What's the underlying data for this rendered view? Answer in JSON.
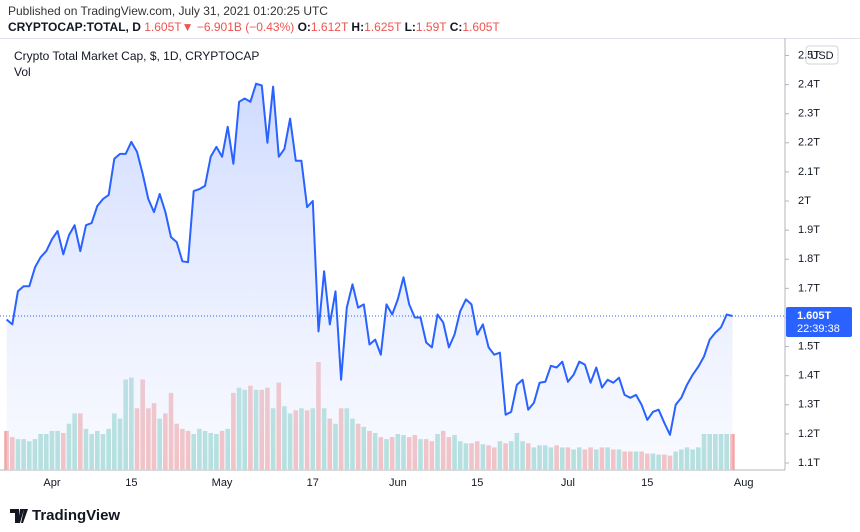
{
  "header": {
    "published": "Published on TradingView.com, July 31, 2021 01:20:25 UTC",
    "symbol": "CRYPTOCAP:TOTAL, D",
    "price": "1.605T",
    "arrow": "▼",
    "change": "−6.901B (−0.43%)",
    "ohlc": [
      {
        "label": "O:",
        "value": "1.612T"
      },
      {
        "label": "H:",
        "value": "1.625T"
      },
      {
        "label": "L:",
        "value": "1.59T"
      },
      {
        "label": "C:",
        "value": "1.605T"
      }
    ]
  },
  "footer": {
    "brand": "TradingView"
  },
  "chart_data": {
    "type": "line",
    "title": "Crypto Total Market Cap, $, 1D, CRYPTOCAP",
    "currency": "USD",
    "last_label": "1.605T",
    "countdown": "22:39:38",
    "categories": [
      null,
      null,
      null,
      null,
      null,
      null,
      null,
      null,
      "Apr",
      null,
      null,
      null,
      null,
      null,
      null,
      null,
      null,
      null,
      null,
      null,
      null,
      null,
      "15",
      null,
      null,
      null,
      null,
      null,
      null,
      null,
      null,
      null,
      null,
      null,
      null,
      null,
      null,
      null,
      "May",
      null,
      null,
      null,
      null,
      null,
      null,
      null,
      null,
      null,
      null,
      null,
      null,
      null,
      null,
      null,
      "17",
      null,
      null,
      null,
      null,
      null,
      null,
      null,
      null,
      null,
      null,
      null,
      null,
      null,
      null,
      "Jun",
      null,
      null,
      null,
      null,
      null,
      null,
      null,
      null,
      null,
      null,
      null,
      null,
      null,
      "15",
      null,
      null,
      null,
      null,
      null,
      null,
      null,
      null,
      null,
      null,
      null,
      null,
      null,
      null,
      null,
      "Jul",
      null,
      null,
      null,
      null,
      null,
      null,
      null,
      null,
      null,
      null,
      null,
      null,
      null,
      "15",
      null,
      null,
      null,
      null,
      null,
      null,
      null,
      null,
      null,
      null,
      null,
      null,
      null,
      null,
      null,
      null,
      "Aug"
    ],
    "series": [
      {
        "name": "Crypto Total Market Cap",
        "color": "#2962ff",
        "fill": "#dde6ff",
        "values": [
          1.593,
          1.576,
          1.69,
          1.707,
          1.707,
          1.772,
          1.807,
          1.828,
          1.869,
          1.897,
          1.817,
          1.883,
          1.917,
          1.828,
          1.917,
          1.924,
          1.983,
          2.007,
          2.021,
          2.145,
          2.162,
          2.162,
          2.203,
          2.169,
          2.093,
          2.007,
          1.962,
          2.024,
          1.962,
          1.876,
          1.859,
          1.793,
          1.79,
          2.034,
          2.041,
          2.052,
          2.152,
          2.186,
          2.152,
          2.255,
          2.128,
          2.341,
          2.352,
          2.341,
          2.403,
          2.397,
          2.2,
          2.393,
          2.152,
          2.179,
          2.283,
          2.138,
          2.138,
          1.979,
          2.0,
          1.552,
          1.759,
          1.576,
          1.69,
          1.386,
          1.634,
          1.714,
          1.634,
          1.645,
          1.507,
          1.524,
          1.472,
          1.645,
          1.61,
          1.662,
          1.738,
          1.645,
          1.6,
          1.6,
          1.514,
          1.497,
          1.61,
          1.583,
          1.497,
          1.541,
          1.621,
          1.662,
          1.645,
          1.541,
          1.576,
          1.497,
          1.472,
          1.479,
          1.266,
          1.276,
          1.369,
          1.386,
          1.283,
          1.307,
          1.376,
          1.379,
          1.434,
          1.428,
          1.448,
          1.379,
          1.403,
          1.448,
          1.438,
          1.376,
          1.428,
          1.359,
          1.386,
          1.376,
          1.393,
          1.334,
          1.324,
          1.334,
          1.3,
          1.248,
          1.276,
          1.283,
          1.238,
          1.197,
          1.3,
          1.324,
          1.369,
          1.403,
          1.431,
          1.466,
          1.524,
          1.548,
          1.566,
          1.61,
          1.605,
          null,
          null
        ]
      },
      {
        "name": "Vol",
        "up_color": "#8fd4c9",
        "down_color": "#f3a3a1",
        "values": [
          38,
          32,
          30,
          30,
          28,
          30,
          35,
          35,
          38,
          38,
          36,
          45,
          55,
          55,
          40,
          35,
          38,
          35,
          40,
          55,
          50,
          88,
          90,
          60,
          88,
          60,
          65,
          50,
          55,
          75,
          45,
          40,
          38,
          35,
          40,
          38,
          36,
          35,
          38,
          40,
          75,
          80,
          78,
          82,
          78,
          78,
          80,
          60,
          85,
          62,
          55,
          58,
          60,
          58,
          60,
          105,
          60,
          50,
          45,
          60,
          60,
          50,
          45,
          42,
          38,
          36,
          32,
          30,
          32,
          35,
          34,
          32,
          34,
          30,
          30,
          28,
          35,
          38,
          32,
          34,
          28,
          26,
          26,
          28,
          25,
          24,
          22,
          28,
          26,
          28,
          36,
          28,
          26,
          22,
          24,
          24,
          22,
          24,
          22,
          22,
          20,
          22,
          20,
          22,
          20,
          22,
          22,
          20,
          20,
          18,
          18,
          18,
          18,
          16,
          16,
          15,
          15,
          14,
          18,
          20,
          22,
          20,
          22,
          35,
          35,
          35,
          35,
          35,
          35,
          null,
          null
        ]
      }
    ],
    "ylim": [
      1.076,
      2.56
    ],
    "yticks": [
      {
        "value": 1.1,
        "label": "1.1T"
      },
      {
        "value": 1.2,
        "label": "1.2T"
      },
      {
        "value": 1.3,
        "label": "1.3T"
      },
      {
        "value": 1.4,
        "label": "1.4T"
      },
      {
        "value": 1.5,
        "label": "1.5T"
      },
      {
        "value": 1.6,
        "label": "1.6T"
      },
      {
        "value": 1.7,
        "label": "1.7T"
      },
      {
        "value": 1.8,
        "label": "1.8T"
      },
      {
        "value": 1.9,
        "label": "1.9T"
      },
      {
        "value": 2,
        "label": "2T"
      },
      {
        "value": 2.1,
        "label": "2.1T"
      },
      {
        "value": 2.2,
        "label": "2.2T"
      },
      {
        "value": 2.3,
        "label": "2.3T"
      },
      {
        "value": 2.4,
        "label": "2.4T"
      },
      {
        "value": 2.5,
        "label": "2.5T"
      }
    ],
    "grid": false
  }
}
